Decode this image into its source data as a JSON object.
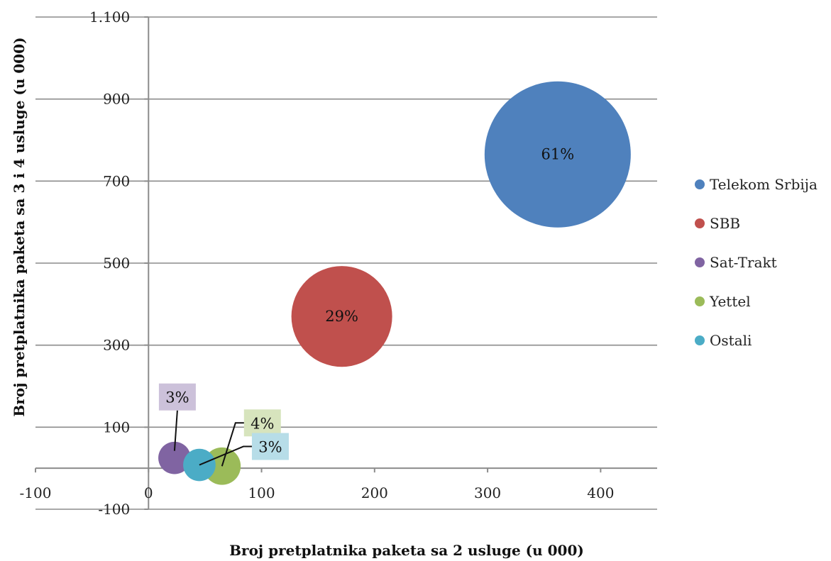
{
  "chart_data": {
    "type": "bubble",
    "xlabel": "Broj pretplatnika paketa sa 2 usluge (u 000)",
    "ylabel": "Broj pretplatnika paketa sa 3 i 4 usluge (u 000)",
    "xlim": [
      -100,
      450
    ],
    "ylim": [
      -100,
      1100
    ],
    "x_ticks": [
      {
        "value": -100,
        "label": "-100"
      },
      {
        "value": 0,
        "label": "0"
      },
      {
        "value": 100,
        "label": "100"
      },
      {
        "value": 200,
        "label": "200"
      },
      {
        "value": 300,
        "label": "300"
      },
      {
        "value": 400,
        "label": "400"
      }
    ],
    "y_ticks": [
      {
        "value": -100,
        "label": "-100"
      },
      {
        "value": 100,
        "label": "100"
      },
      {
        "value": 300,
        "label": "300"
      },
      {
        "value": 500,
        "label": "500"
      },
      {
        "value": 700,
        "label": "700"
      },
      {
        "value": 900,
        "label": "900"
      },
      {
        "value": 1100,
        "label": "1.100"
      }
    ],
    "grid": true,
    "legend_position": "right",
    "series": [
      {
        "name": "Telekom Srbija",
        "x": 362,
        "y": 765,
        "share": 61,
        "label": "61%",
        "color": "#4f81bd"
      },
      {
        "name": "SBB",
        "x": 171,
        "y": 370,
        "share": 29,
        "label": "29%",
        "color": "#c0504d"
      },
      {
        "name": "Sat-Trakt",
        "x": 23,
        "y": 25,
        "share": 3,
        "label": "3%",
        "color": "#8064a2"
      },
      {
        "name": "Yettel",
        "x": 65,
        "y": 5,
        "share": 4,
        "label": "4%",
        "color": "#9bbb59"
      },
      {
        "name": "Ostali",
        "x": 45,
        "y": 8,
        "share": 3,
        "label": "3%",
        "color": "#4bacc6"
      }
    ]
  }
}
